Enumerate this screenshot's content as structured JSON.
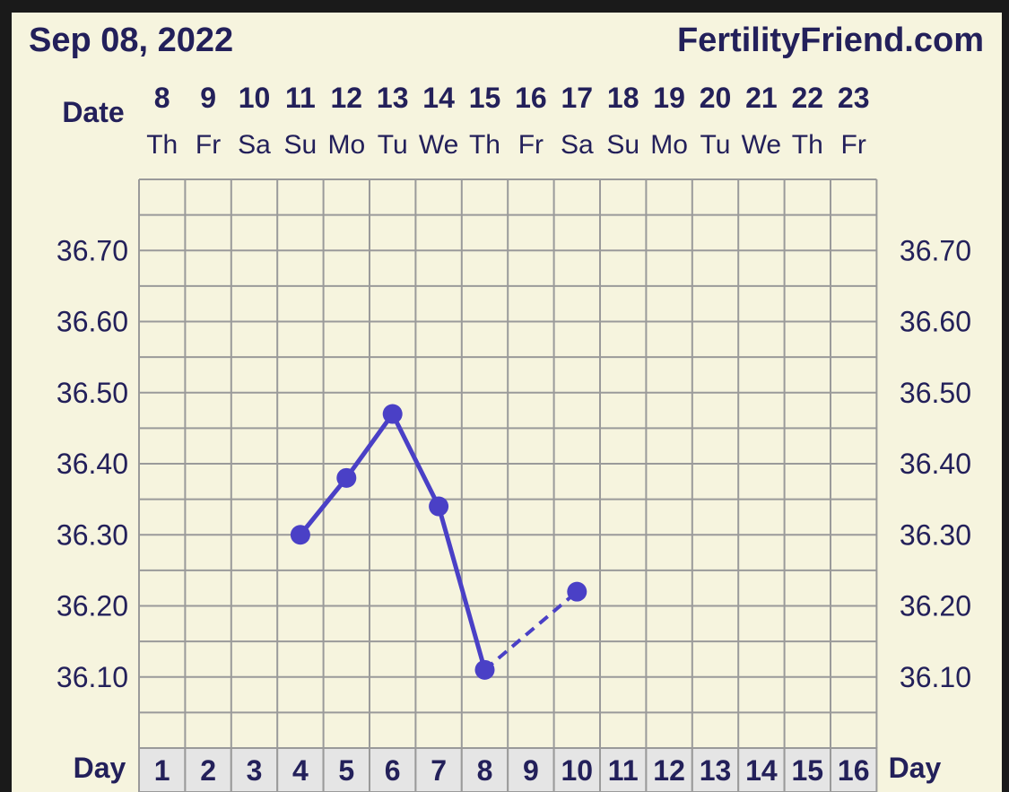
{
  "header": {
    "date_title": "Sep 08, 2022",
    "site_name": "FertilityFriend.com"
  },
  "labels": {
    "date_label": "Date",
    "day_label_left": "Day",
    "day_label_right": "Day"
  },
  "colors": {
    "background": "#f6f4de",
    "frame": "#1a1a1a",
    "text": "#23205a",
    "grid": "#9a9a9a",
    "series": "#4a40c6",
    "day_cell": "#e5e5e5"
  },
  "chart_data": {
    "type": "line",
    "dates": [
      "8",
      "9",
      "10",
      "11",
      "12",
      "13",
      "14",
      "15",
      "16",
      "17",
      "18",
      "19",
      "20",
      "21",
      "22",
      "23"
    ],
    "weekdays": [
      "Th",
      "Fr",
      "Sa",
      "Su",
      "Mo",
      "Tu",
      "We",
      "Th",
      "Fr",
      "Sa",
      "Su",
      "Mo",
      "Tu",
      "We",
      "Th",
      "Fr"
    ],
    "cycle_days": [
      "1",
      "2",
      "3",
      "4",
      "5",
      "6",
      "7",
      "8",
      "9",
      "10",
      "11",
      "12",
      "13",
      "14",
      "15",
      "16"
    ],
    "y_ticks": [
      "36.70",
      "36.60",
      "36.50",
      "36.40",
      "36.30",
      "36.20",
      "36.10"
    ],
    "ylim": [
      36.0,
      36.8
    ],
    "grid": true,
    "series": [
      {
        "points": [
          {
            "day": 4,
            "temp": 36.3
          },
          {
            "day": 5,
            "temp": 36.38
          },
          {
            "day": 6,
            "temp": 36.47
          },
          {
            "day": 7,
            "temp": 36.34
          },
          {
            "day": 8,
            "temp": 36.11
          },
          {
            "day": 10,
            "temp": 36.22
          }
        ],
        "solid_segments": [
          [
            0,
            1
          ],
          [
            1,
            2
          ],
          [
            2,
            3
          ],
          [
            3,
            4
          ]
        ],
        "dashed_segments": [
          [
            4,
            5
          ]
        ]
      }
    ]
  }
}
